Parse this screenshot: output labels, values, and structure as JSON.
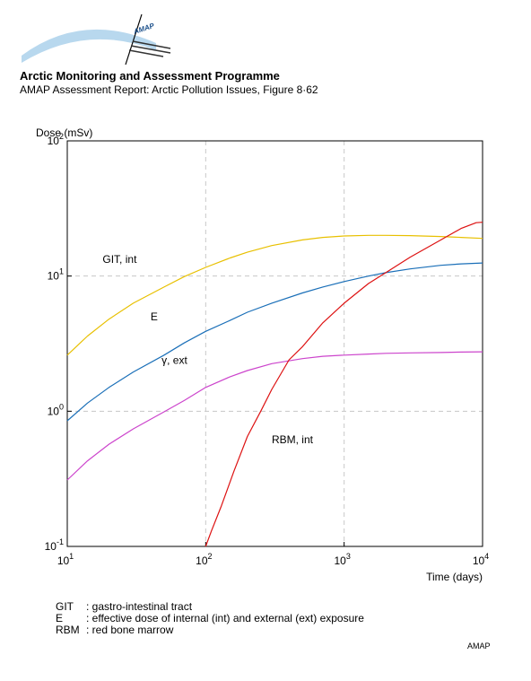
{
  "header": {
    "title": "Arctic Monitoring and Assessment Programme",
    "subtitle": "AMAP Assessment Report: Arctic Pollution Issues, Figure 8·62",
    "logo_text": "AMAP"
  },
  "chart_data": {
    "type": "line",
    "ylabel": "Dose (mSv)",
    "xlabel": "Time (days)",
    "x_scale": "log",
    "y_scale": "log",
    "xlim": [
      10,
      10000
    ],
    "ylim": [
      0.1,
      100
    ],
    "grid": true,
    "x_ticks": [
      {
        "value": 10,
        "base": "10",
        "exp": "1"
      },
      {
        "value": 100,
        "base": "10",
        "exp": "2"
      },
      {
        "value": 1000,
        "base": "10",
        "exp": "3"
      },
      {
        "value": 10000,
        "base": "10",
        "exp": "4"
      }
    ],
    "y_ticks": [
      {
        "value": 0.1,
        "base": "10",
        "exp": "-1"
      },
      {
        "value": 1,
        "base": "10",
        "exp": "0"
      },
      {
        "value": 10,
        "base": "10",
        "exp": "1"
      },
      {
        "value": 100,
        "base": "10",
        "exp": "2"
      }
    ],
    "series": [
      {
        "name": "GIT, int",
        "color": "#e8c000",
        "label_at": [
          18,
          12.5
        ],
        "x": [
          10,
          14,
          20,
          30,
          50,
          70,
          100,
          150,
          200,
          300,
          500,
          700,
          1000,
          1500,
          2000,
          3000,
          5000,
          7000,
          10000
        ],
        "y": [
          2.6,
          3.6,
          4.8,
          6.3,
          8.3,
          9.9,
          11.6,
          13.6,
          15.0,
          16.8,
          18.5,
          19.3,
          19.8,
          20.0,
          20.0,
          19.9,
          19.6,
          19.3,
          19.0
        ]
      },
      {
        "name": "E",
        "color": "#1a6fb8",
        "label_at": [
          40,
          4.7
        ],
        "x": [
          10,
          14,
          20,
          30,
          50,
          70,
          100,
          150,
          200,
          300,
          500,
          700,
          1000,
          1500,
          2000,
          3000,
          5000,
          7000,
          10000
        ],
        "y": [
          0.85,
          1.15,
          1.5,
          1.95,
          2.6,
          3.2,
          3.9,
          4.7,
          5.4,
          6.3,
          7.5,
          8.3,
          9.1,
          10.0,
          10.6,
          11.3,
          12.0,
          12.3,
          12.5
        ]
      },
      {
        "name": "γ, ext",
        "color": "#cc44cc",
        "label_at": [
          48,
          2.25
        ],
        "x": [
          10,
          14,
          20,
          30,
          50,
          70,
          100,
          150,
          200,
          300,
          500,
          700,
          1000,
          1500,
          2000,
          3000,
          5000,
          7000,
          10000
        ],
        "y": [
          0.31,
          0.43,
          0.57,
          0.74,
          0.99,
          1.2,
          1.5,
          1.8,
          2.0,
          2.25,
          2.45,
          2.55,
          2.6,
          2.65,
          2.68,
          2.7,
          2.72,
          2.74,
          2.75
        ]
      },
      {
        "name": "RBM, int",
        "color": "#dd1111",
        "label_at": [
          300,
          0.58
        ],
        "x": [
          100,
          110,
          130,
          160,
          200,
          250,
          300,
          400,
          500,
          700,
          1000,
          1500,
          2000,
          3000,
          5000,
          7000,
          9000,
          10000
        ],
        "y": [
          0.1,
          0.13,
          0.2,
          0.36,
          0.65,
          1.0,
          1.45,
          2.4,
          3.0,
          4.5,
          6.3,
          8.8,
          10.6,
          13.8,
          18.5,
          22.5,
          24.8,
          25.0
        ]
      }
    ]
  },
  "legend": [
    {
      "key": "GIT",
      "desc": ": gastro-intestinal tract"
    },
    {
      "key": "E",
      "desc": ": effective dose of internal (int) and external (ext) exposure"
    },
    {
      "key": "RBM",
      "desc": ": red bone marrow"
    }
  ],
  "credit": "AMAP"
}
